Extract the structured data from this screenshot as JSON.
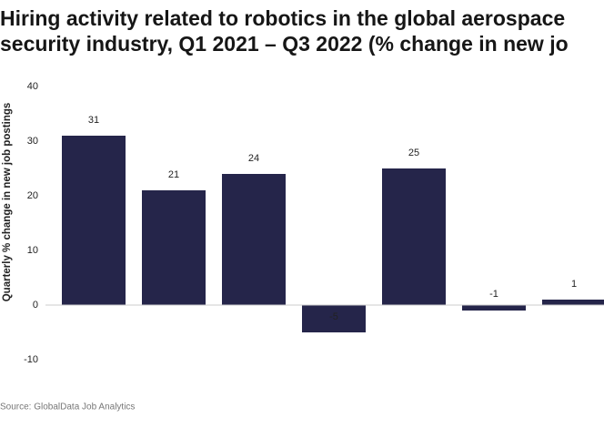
{
  "chart_data": {
    "type": "bar",
    "title": [
      "Hiring activity related to robotics in the global aerospace",
      "security industry, Q1 2021 – Q3 2022 (% change in new jo"
    ],
    "y_label": "Quarterly % change in new job postings",
    "source": "Source: GlobalData Job Analytics",
    "categories": [
      null,
      null,
      null,
      null,
      null,
      null,
      null
    ],
    "values": [
      31,
      21,
      24,
      -5,
      25,
      -1,
      1
    ],
    "color": "#25254a",
    "ylim": [
      -10,
      40
    ],
    "yticks": [
      -10,
      0,
      10,
      20,
      30,
      40
    ],
    "grid": false
  }
}
